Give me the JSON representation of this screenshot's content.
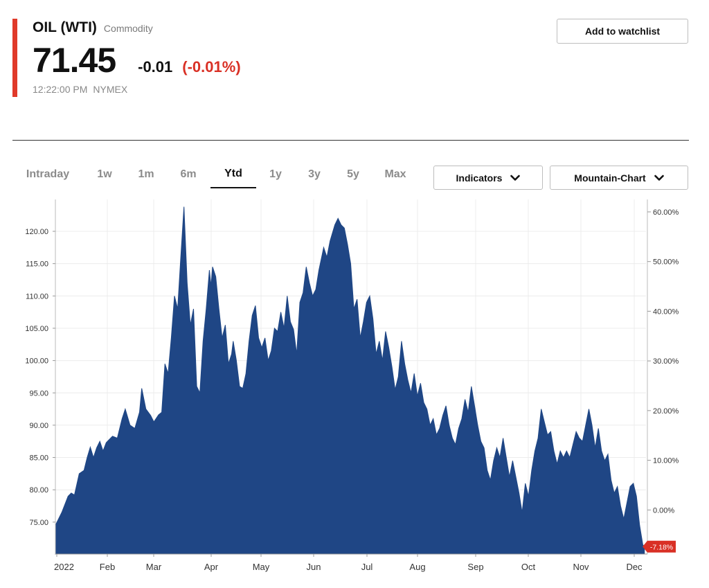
{
  "quote": {
    "symbol": "OIL (WTI)",
    "asset_type": "Commodity",
    "price": "71.45",
    "change": "-0.01",
    "change_pct": "(-0.01%)",
    "time": "12:22:00 PM",
    "exchange": "NYMEX"
  },
  "actions": {
    "watchlist_label": "Add to watchlist"
  },
  "tabs": [
    {
      "label": "Intraday",
      "active": false
    },
    {
      "label": "1w",
      "active": false
    },
    {
      "label": "1m",
      "active": false
    },
    {
      "label": "6m",
      "active": false
    },
    {
      "label": "Ytd",
      "active": true
    },
    {
      "label": "1y",
      "active": false
    },
    {
      "label": "3y",
      "active": false
    },
    {
      "label": "5y",
      "active": false
    },
    {
      "label": "Max",
      "active": false
    }
  ],
  "controls": {
    "indicators_label": "Indicators",
    "chart_type_label": "Mountain-Chart"
  },
  "icons": {
    "dropdown": "chevron-down-icon"
  },
  "colors": {
    "accent": "#e03a2a",
    "negative": "#d93025",
    "area_fill": "#1f4685",
    "badge": "#d93025"
  },
  "chart_data": {
    "type": "area",
    "x_tick_labels": [
      "2022",
      "Feb",
      "Mar",
      "Apr",
      "May",
      "Jun",
      "Jul",
      "Aug",
      "Sep",
      "Oct",
      "Nov",
      "Dec"
    ],
    "y_left_ticks": [
      75,
      80,
      85,
      90,
      95,
      100,
      105,
      110,
      115,
      120
    ],
    "y_left_tick_labels": [
      "75.00",
      "80.00",
      "85.00",
      "90.00",
      "95.00",
      "100.00",
      "105.00",
      "110.00",
      "115.00",
      "120.00"
    ],
    "y_right_tick_labels": [
      "0.00%",
      "10.00%",
      "20.00%",
      "30.00%",
      "40.00%",
      "50.00%",
      "60.00%"
    ],
    "y_right_ticks": [
      0,
      10,
      20,
      30,
      40,
      50,
      60
    ],
    "ylim": [
      70.5,
      124.5
    ],
    "last_value_badge": "-7.18%",
    "grid": true,
    "series": [
      {
        "values": [
          [
            0.0,
            74.5
          ],
          [
            0.2,
            76.5
          ],
          [
            0.4,
            79.0
          ],
          [
            0.5,
            79.5
          ],
          [
            0.6,
            79.2
          ],
          [
            0.75,
            82.5
          ],
          [
            0.9,
            83.0
          ],
          [
            1.0,
            85.0
          ],
          [
            1.1,
            86.6
          ],
          [
            1.2,
            85.0
          ],
          [
            1.3,
            86.5
          ],
          [
            1.4,
            87.5
          ],
          [
            1.5,
            86.0
          ],
          [
            1.6,
            87.3
          ],
          [
            1.8,
            88.3
          ],
          [
            1.95,
            88.0
          ],
          [
            2.1,
            91.0
          ],
          [
            2.2,
            92.5
          ],
          [
            2.35,
            90.0
          ],
          [
            2.5,
            89.5
          ],
          [
            2.65,
            92.0
          ],
          [
            2.72,
            95.7
          ],
          [
            2.85,
            92.5
          ],
          [
            3.0,
            91.5
          ],
          [
            3.1,
            90.5
          ],
          [
            3.25,
            91.6
          ],
          [
            3.35,
            92.0
          ],
          [
            3.45,
            99.5
          ],
          [
            3.55,
            98.0
          ],
          [
            3.65,
            103.5
          ],
          [
            3.75,
            110.0
          ],
          [
            3.85,
            108.0
          ],
          [
            3.95,
            116.0
          ],
          [
            4.05,
            123.8
          ],
          [
            4.15,
            112.0
          ],
          [
            4.25,
            105.5
          ],
          [
            4.35,
            108.0
          ],
          [
            4.45,
            96.0
          ],
          [
            4.55,
            95.0
          ],
          [
            4.65,
            103.0
          ],
          [
            4.75,
            108.0
          ],
          [
            4.85,
            114.0
          ],
          [
            4.9,
            111.5
          ],
          [
            4.95,
            114.5
          ],
          [
            5.05,
            113.0
          ],
          [
            5.15,
            108.0
          ],
          [
            5.25,
            103.5
          ],
          [
            5.35,
            105.5
          ],
          [
            5.45,
            99.5
          ],
          [
            5.55,
            101.0
          ],
          [
            5.6,
            103.0
          ],
          [
            5.7,
            100.0
          ],
          [
            5.8,
            96.0
          ],
          [
            5.9,
            95.7
          ],
          [
            6.0,
            98.0
          ],
          [
            6.1,
            103.0
          ],
          [
            6.2,
            107.0
          ],
          [
            6.3,
            108.5
          ],
          [
            6.4,
            103.5
          ],
          [
            6.5,
            102.0
          ],
          [
            6.6,
            103.5
          ],
          [
            6.7,
            100.0
          ],
          [
            6.8,
            101.5
          ],
          [
            6.9,
            105.0
          ],
          [
            7.0,
            104.5
          ],
          [
            7.1,
            107.5
          ],
          [
            7.2,
            105.0
          ],
          [
            7.3,
            110.0
          ],
          [
            7.4,
            106.0
          ],
          [
            7.5,
            104.8
          ],
          [
            7.6,
            101.0
          ],
          [
            7.7,
            109.0
          ],
          [
            7.8,
            110.5
          ],
          [
            7.9,
            114.5
          ],
          [
            8.0,
            112.0
          ],
          [
            8.1,
            110.0
          ],
          [
            8.2,
            111.0
          ],
          [
            8.3,
            114.0
          ],
          [
            8.45,
            117.5
          ],
          [
            8.55,
            116.0
          ],
          [
            8.65,
            118.5
          ],
          [
            8.8,
            121.0
          ],
          [
            8.9,
            122.0
          ],
          [
            9.0,
            121.0
          ],
          [
            9.1,
            120.5
          ],
          [
            9.2,
            118.0
          ],
          [
            9.3,
            115.0
          ],
          [
            9.4,
            108.0
          ],
          [
            9.5,
            109.5
          ],
          [
            9.6,
            103.5
          ],
          [
            9.7,
            106.0
          ],
          [
            9.8,
            109.0
          ],
          [
            9.9,
            110.0
          ],
          [
            10.0,
            106.5
          ],
          [
            10.1,
            101.0
          ],
          [
            10.2,
            103.0
          ],
          [
            10.3,
            100.0
          ],
          [
            10.4,
            104.5
          ],
          [
            10.5,
            102.0
          ],
          [
            10.6,
            99.0
          ],
          [
            10.7,
            95.5
          ],
          [
            10.8,
            97.5
          ],
          [
            10.9,
            103.0
          ],
          [
            11.0,
            99.5
          ],
          [
            11.1,
            97.0
          ],
          [
            11.2,
            95.0
          ],
          [
            11.3,
            98.0
          ],
          [
            11.4,
            94.5
          ],
          [
            11.5,
            96.5
          ],
          [
            11.6,
            93.5
          ],
          [
            11.7,
            92.5
          ],
          [
            11.8,
            90.0
          ],
          [
            11.9,
            91.0
          ],
          [
            12.0,
            88.5
          ],
          [
            12.1,
            89.5
          ],
          [
            12.2,
            91.5
          ],
          [
            12.3,
            93.0
          ],
          [
            12.4,
            90.0
          ],
          [
            12.5,
            88.0
          ],
          [
            12.6,
            87.0
          ],
          [
            12.7,
            89.5
          ],
          [
            12.8,
            91.0
          ],
          [
            12.9,
            94.0
          ],
          [
            13.0,
            92.0
          ],
          [
            13.1,
            96.0
          ],
          [
            13.2,
            93.0
          ],
          [
            13.3,
            90.0
          ],
          [
            13.4,
            87.5
          ],
          [
            13.5,
            86.5
          ],
          [
            13.6,
            83.0
          ],
          [
            13.7,
            81.5
          ],
          [
            13.8,
            84.5
          ],
          [
            13.9,
            86.5
          ],
          [
            14.0,
            85.0
          ],
          [
            14.1,
            88.0
          ],
          [
            14.2,
            85.0
          ],
          [
            14.3,
            82.0
          ],
          [
            14.4,
            84.5
          ],
          [
            14.5,
            82.0
          ],
          [
            14.6,
            79.5
          ],
          [
            14.7,
            76.5
          ],
          [
            14.8,
            81.0
          ],
          [
            14.9,
            79.0
          ],
          [
            15.0,
            83.0
          ],
          [
            15.1,
            86.0
          ],
          [
            15.2,
            88.0
          ],
          [
            15.3,
            92.5
          ],
          [
            15.4,
            90.5
          ],
          [
            15.5,
            88.5
          ],
          [
            15.6,
            89.0
          ],
          [
            15.7,
            86.0
          ],
          [
            15.8,
            84.0
          ],
          [
            15.9,
            86.0
          ],
          [
            16.0,
            85.0
          ],
          [
            16.1,
            86.0
          ],
          [
            16.2,
            85.0
          ],
          [
            16.3,
            87.0
          ],
          [
            16.4,
            89.0
          ],
          [
            16.5,
            88.0
          ],
          [
            16.6,
            87.5
          ],
          [
            16.7,
            90.0
          ],
          [
            16.8,
            92.5
          ],
          [
            16.9,
            90.0
          ],
          [
            17.0,
            86.5
          ],
          [
            17.1,
            89.5
          ],
          [
            17.2,
            86.0
          ],
          [
            17.3,
            84.5
          ],
          [
            17.4,
            85.5
          ],
          [
            17.5,
            81.5
          ],
          [
            17.6,
            79.5
          ],
          [
            17.7,
            80.5
          ],
          [
            17.8,
            77.5
          ],
          [
            17.9,
            75.5
          ],
          [
            18.0,
            78.0
          ],
          [
            18.1,
            80.5
          ],
          [
            18.2,
            81.0
          ],
          [
            18.3,
            79.0
          ],
          [
            18.4,
            74.5
          ],
          [
            18.5,
            71.5
          ],
          [
            18.55,
            71.2
          ]
        ]
      }
    ]
  }
}
